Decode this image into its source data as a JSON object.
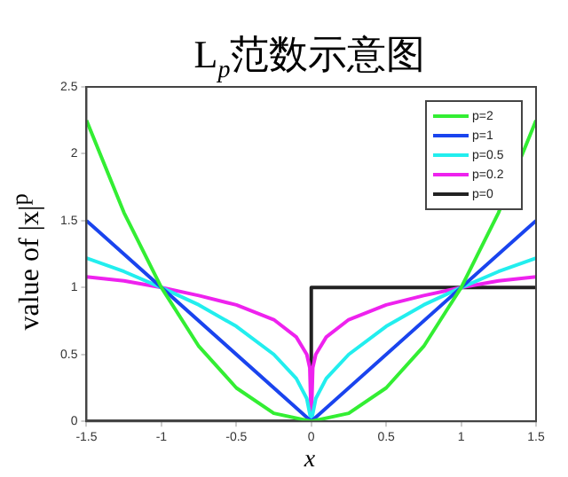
{
  "chart_data": {
    "type": "line",
    "title": "L$_{p}$范数示意图",
    "xlabel": "x",
    "ylabel": "value of |x|$^{p}$",
    "xlim": [
      -1.5,
      1.5
    ],
    "xticks": [
      -1.5,
      -1,
      -0.5,
      0,
      0.5,
      1,
      1.5
    ],
    "ylim": [
      0,
      2.5
    ],
    "yticks": [
      0,
      0.5,
      1,
      1.5,
      2,
      2.5
    ],
    "grid": false,
    "legend": "top right",
    "marker": "none",
    "line_style": "solid",
    "series": [
      {
        "name": "p=2",
        "color": "#33ee33",
        "x": [
          -1.5,
          -1.25,
          -1,
          -0.75,
          -0.5,
          -0.25,
          0,
          0.25,
          0.5,
          0.75,
          1,
          1.25,
          1.5
        ],
        "values": [
          2.25,
          1.56,
          1,
          0.56,
          0.25,
          0.06,
          0,
          0.06,
          0.25,
          0.56,
          1,
          1.56,
          2.25
        ]
      },
      {
        "name": "p=1",
        "color": "#1a44ee",
        "x": [
          -1.5,
          0,
          1.5
        ],
        "values": [
          1.5,
          0,
          1.5
        ]
      },
      {
        "name": "p=0.5",
        "color": "#22eeee",
        "x": [
          -1.5,
          -1.25,
          -1,
          -0.75,
          -0.5,
          -0.25,
          -0.1,
          -0.03,
          0,
          0.03,
          0.1,
          0.25,
          0.5,
          0.75,
          1,
          1.25,
          1.5
        ],
        "values": [
          1.22,
          1.12,
          1,
          0.87,
          0.71,
          0.5,
          0.32,
          0.17,
          0,
          0.17,
          0.32,
          0.5,
          0.71,
          0.87,
          1,
          1.12,
          1.22
        ]
      },
      {
        "name": "p=0.2",
        "color": "#ee22ee",
        "x": [
          -1.5,
          -1.25,
          -1,
          -0.75,
          -0.5,
          -0.25,
          -0.1,
          -0.03,
          -0.01,
          0,
          0.01,
          0.03,
          0.1,
          0.25,
          0.5,
          0.75,
          1,
          1.25,
          1.5
        ],
        "values": [
          1.08,
          1.05,
          1,
          0.94,
          0.87,
          0.76,
          0.63,
          0.5,
          0.4,
          0,
          0.4,
          0.5,
          0.63,
          0.76,
          0.87,
          0.94,
          1,
          1.05,
          1.08
        ]
      },
      {
        "name": "p=0",
        "color": "#222222",
        "x": [
          -1.5,
          0,
          0,
          1.5
        ],
        "values": [
          0,
          0,
          1,
          1
        ]
      }
    ]
  }
}
